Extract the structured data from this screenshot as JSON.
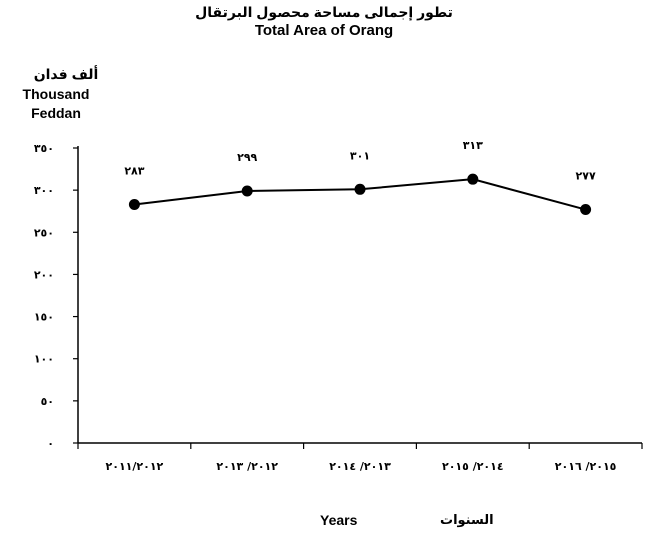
{
  "chart_data": {
    "type": "line",
    "title_ar": "تطور إجمالى مساحة محصول البرتقال",
    "title_en": "Total Area of Orang",
    "ylabel_ar": "ألف فدان",
    "ylabel_en_line1": "Thousand",
    "ylabel_en_line2": "Feddan",
    "xlabel_en": "Years",
    "xlabel_ar": "السنوات",
    "categories": [
      "٢٠١١/٢٠١٢",
      "٢٠١٢/ ٢٠١٣",
      "٢٠١٣/ ٢٠١٤",
      "٢٠١٤/ ٢٠١٥",
      "٢٠١٥/ ٢٠١٦"
    ],
    "series": [
      {
        "values": [
          283,
          299,
          301,
          313,
          277
        ],
        "data_labels": [
          "٢٨٣",
          "٢٩٩",
          "٣٠١",
          "٣١٣",
          "٢٧٧"
        ]
      }
    ],
    "ylim": [
      0,
      350
    ],
    "yticks": [
      0,
      50,
      100,
      150,
      200,
      250,
      300,
      350
    ],
    "ytick_labels": [
      "٠",
      "٥٠",
      "١٠٠",
      "١٥٠",
      "٢٠٠",
      "٢٥٠",
      "٣٠٠",
      "٣٥٠"
    ],
    "grid": false,
    "legend": "none",
    "line_color": "#000000",
    "marker": "filled-circle"
  }
}
